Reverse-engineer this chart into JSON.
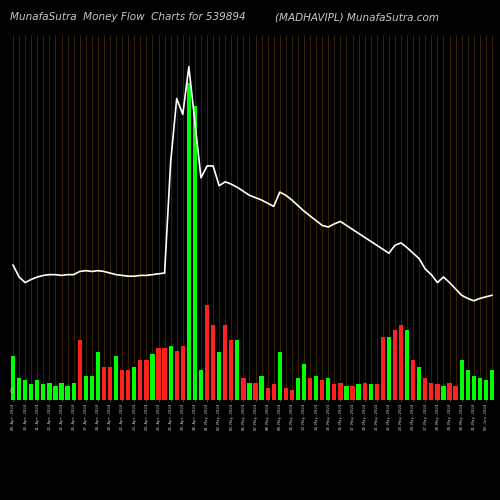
{
  "title_left": "MunafaSutra  Money Flow  Charts for 539894",
  "title_right": "(MADHAVIPL) MunafaSutra.com",
  "background_color": "#000000",
  "bar_colors": [
    "green",
    "green",
    "green",
    "green",
    "green",
    "green",
    "green",
    "green",
    "green",
    "green",
    "green",
    "red",
    "green",
    "green",
    "green",
    "red",
    "red",
    "green",
    "red",
    "red",
    "green",
    "red",
    "red",
    "green",
    "red",
    "red",
    "green",
    "red",
    "red",
    "green",
    "green",
    "green",
    "red",
    "red",
    "green",
    "red",
    "red",
    "green",
    "red",
    "green",
    "red",
    "green",
    "red",
    "red",
    "green",
    "red",
    "red",
    "green",
    "green",
    "red",
    "green",
    "red",
    "green",
    "red",
    "red",
    "green",
    "red",
    "green",
    "red",
    "green",
    "red",
    "red",
    "green",
    "red",
    "red",
    "green",
    "red",
    "green",
    "red",
    "red",
    "red",
    "green",
    "red",
    "red",
    "green",
    "green",
    "green",
    "green",
    "green",
    "green"
  ],
  "bar_heights": [
    55,
    28,
    25,
    20,
    25,
    20,
    22,
    18,
    22,
    18,
    22,
    75,
    30,
    30,
    60,
    42,
    42,
    55,
    38,
    38,
    42,
    50,
    50,
    58,
    65,
    65,
    68,
    62,
    68,
    400,
    370,
    38,
    120,
    95,
    60,
    95,
    75,
    75,
    28,
    22,
    22,
    30,
    15,
    20,
    60,
    15,
    12,
    28,
    45,
    28,
    30,
    25,
    28,
    20,
    22,
    18,
    18,
    20,
    22,
    20,
    20,
    80,
    80,
    88,
    95,
    88,
    50,
    42,
    28,
    22,
    20,
    18,
    22,
    18,
    50,
    38,
    30,
    28,
    25,
    38
  ],
  "line_values": [
    170,
    155,
    148,
    152,
    155,
    157,
    158,
    158,
    157,
    158,
    158,
    162,
    163,
    162,
    163,
    162,
    160,
    158,
    157,
    156,
    156,
    157,
    157,
    158,
    159,
    160,
    300,
    380,
    360,
    420,
    350,
    280,
    295,
    295,
    270,
    275,
    272,
    268,
    263,
    258,
    255,
    252,
    248,
    244,
    262,
    258,
    252,
    245,
    238,
    232,
    226,
    220,
    218,
    222,
    225,
    220,
    215,
    210,
    205,
    200,
    195,
    190,
    185,
    195,
    198,
    192,
    185,
    178,
    165,
    158,
    148,
    155,
    148,
    140,
    132,
    128,
    125,
    128,
    130,
    132
  ],
  "dates": [
    "09-Apr-2024",
    "10-Apr-2024",
    "11-Apr-2024",
    "12-Apr-2024",
    "15-Apr-2024",
    "16-Apr-2024",
    "17-Apr-2024",
    "18-Apr-2024",
    "19-Apr-2024",
    "22-Apr-2024",
    "23-Apr-2024",
    "24-Apr-2024",
    "25-Apr-2024",
    "26-Apr-2024",
    "29-Apr-2024",
    "30-Apr-2024",
    "01-May-2024",
    "02-May-2024",
    "03-May-2024",
    "06-May-2024",
    "07-May-2024",
    "08-May-2024",
    "09-May-2024",
    "10-May-2024",
    "13-May-2024",
    "14-May-2024",
    "15-May-2024",
    "16-May-2024",
    "17-May-2024",
    "20-May-2024",
    "21-May-2024",
    "22-May-2024",
    "23-May-2024",
    "24-May-2024",
    "27-May-2024",
    "28-May-2024",
    "29-May-2024",
    "30-May-2024",
    "31-May-2024",
    "03-Jun-2024"
  ],
  "n_bars": 80,
  "line_color": "#ffffff",
  "green_color": "#00ff00",
  "red_color": "#ff2020",
  "grid_color": "#5a3a00",
  "title_color": "#c8c8c8",
  "title_fontsize": 7.5,
  "figsize": [
    5.0,
    5.0
  ],
  "dpi": 100
}
